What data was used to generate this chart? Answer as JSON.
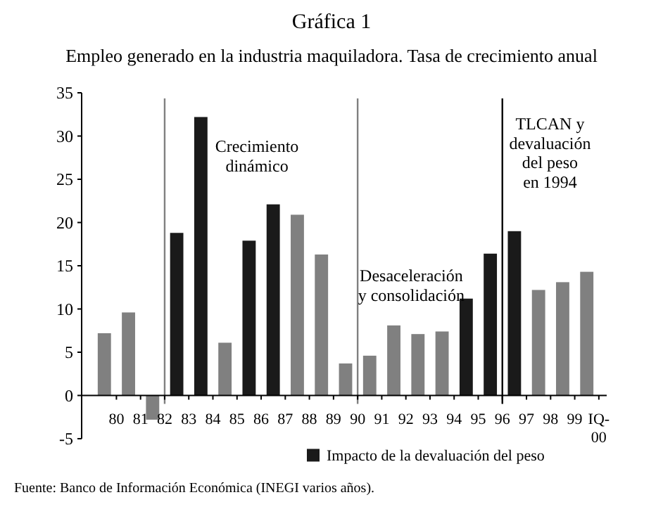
{
  "chart_data": {
    "type": "bar",
    "title": "Gráfica 1",
    "subtitle": "Empleo generado en la industria maquiladora. Tasa de crecimiento anual",
    "categories": [
      "80",
      "81",
      "82",
      "83",
      "84",
      "85",
      "86",
      "87",
      "88",
      "89",
      "90",
      "91",
      "92",
      "93",
      "94",
      "95",
      "96",
      "97",
      "98",
      "99",
      "IQ-00"
    ],
    "series": [
      {
        "color": "#808080",
        "values": [
          7.2,
          9.6,
          -2.8,
          null,
          null,
          6.1,
          null,
          null,
          20.9,
          16.3,
          3.7,
          4.6,
          8.1,
          7.1,
          7.4,
          null,
          null,
          null,
          12.2,
          13.1,
          14.3
        ]
      },
      {
        "name": "Impacto de la devaluación del peso",
        "color": "#1a1a1a",
        "values": [
          null,
          null,
          null,
          18.8,
          32.2,
          null,
          17.9,
          22.1,
          null,
          null,
          null,
          null,
          null,
          null,
          null,
          11.2,
          16.4,
          19.0,
          null,
          null,
          null
        ]
      }
    ],
    "ylim": [
      -5,
      35
    ],
    "yticks": [
      -5,
      0,
      5,
      10,
      15,
      20,
      25,
      30,
      35
    ],
    "grid": false,
    "legend": "bottom",
    "ref_lines": [
      {
        "axis": "x",
        "value": "82",
        "color": "#808080"
      },
      {
        "axis": "x",
        "value": "90",
        "color": "#808080"
      },
      {
        "axis": "x",
        "value": "96",
        "color": "#000000"
      }
    ],
    "annotations": [
      "Crecimiento dinámico",
      "Desaceleración y consolidación",
      "TLCAN y devaluación del peso en 1994",
      "Fuente: Banco de Información Económica (INEGI varios años)."
    ]
  }
}
